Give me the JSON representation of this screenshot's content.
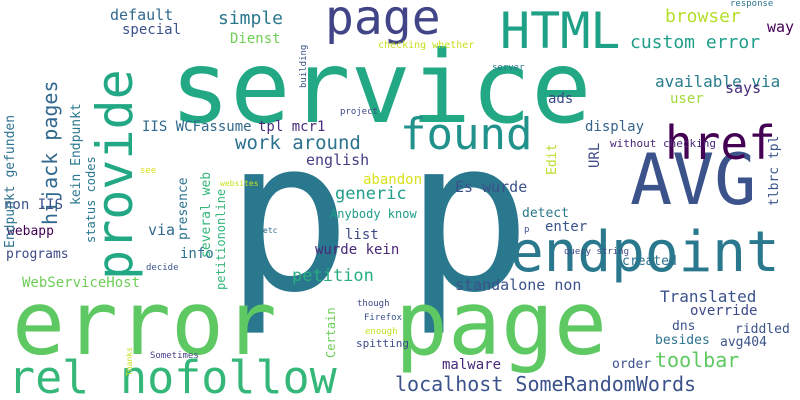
{
  "words": [
    {
      "text": "p",
      "color": "#2a788e"
    },
    {
      "text": "p",
      "color": "#2a788e"
    },
    {
      "text": "service",
      "color": "#22a884"
    },
    {
      "text": "error",
      "color": "#5ec962"
    },
    {
      "text": "page",
      "color": "#5ec962"
    },
    {
      "text": "AVG",
      "color": "#3b528b"
    },
    {
      "text": "endpoint",
      "color": "#2a788e"
    },
    {
      "text": "provide",
      "color": "#22a884"
    },
    {
      "text": "rel",
      "color": "#35b779"
    },
    {
      "text": "nofollow",
      "color": "#35b779"
    },
    {
      "text": "href",
      "color": "#440154"
    },
    {
      "text": "found",
      "color": "#21918c"
    },
    {
      "text": "page",
      "color": "#414487"
    },
    {
      "text": "HTML",
      "color": "#1fa187"
    },
    {
      "text": "localhost SomeRandomWords",
      "color": "#3b528b"
    },
    {
      "text": "hijack pages",
      "color": "#31688e"
    },
    {
      "text": "custom error",
      "color": "#1f9e89"
    },
    {
      "text": "browser",
      "color": "#b5de2b"
    },
    {
      "text": "way",
      "color": "#440154"
    },
    {
      "text": "simple",
      "color": "#2a788e"
    },
    {
      "text": "default",
      "color": "#31688e"
    },
    {
      "text": "special",
      "color": "#3b528b"
    },
    {
      "text": "Dienst",
      "color": "#6ece58"
    },
    {
      "text": "available via",
      "color": "#287c8e"
    },
    {
      "text": "says",
      "color": "#472d7b"
    },
    {
      "text": "user",
      "color": "#a2da37"
    },
    {
      "text": "ads",
      "color": "#3e4989"
    },
    {
      "text": "display",
      "color": "#33638d"
    },
    {
      "text": "Edit",
      "color": "#b8de29"
    },
    {
      "text": "URL",
      "color": "#3e4989"
    },
    {
      "text": "work around",
      "color": "#2c728e"
    },
    {
      "text": "IIS WCFassume",
      "color": "#31688e"
    },
    {
      "text": "tpl mcr1",
      "color": "#472d7b"
    },
    {
      "text": "english",
      "color": "#433e85"
    },
    {
      "text": "generic",
      "color": "#1f9e89"
    },
    {
      "text": "abandon",
      "color": "#d8e219"
    },
    {
      "text": "Es wurde",
      "color": "#3b528b"
    },
    {
      "text": "detect",
      "color": "#2a788e"
    },
    {
      "text": "enter",
      "color": "#39558c"
    },
    {
      "text": "list",
      "color": "#3e4989"
    },
    {
      "text": "wurde kein",
      "color": "#482878"
    },
    {
      "text": "created",
      "color": "#2c728e"
    },
    {
      "text": "petition",
      "color": "#29af7f"
    },
    {
      "text": "standalone non",
      "color": "#3b528b"
    },
    {
      "text": "Translated",
      "color": "#3b528b"
    },
    {
      "text": "override",
      "color": "#3e4989"
    },
    {
      "text": "dns",
      "color": "#3b528b"
    },
    {
      "text": "riddled",
      "color": "#3b528b"
    },
    {
      "text": "besides",
      "color": "#2c728e"
    },
    {
      "text": "avg404",
      "color": "#3b528b"
    },
    {
      "text": "toolbar",
      "color": "#5ec962"
    },
    {
      "text": "order",
      "color": "#3b528b"
    },
    {
      "text": "malware",
      "color": "#482878"
    },
    {
      "text": "spitting",
      "color": "#3e4989"
    },
    {
      "text": "WebServiceHost",
      "color": "#6ece58"
    },
    {
      "text": "programs",
      "color": "#3e4989"
    },
    {
      "text": "webapp",
      "color": "#440154"
    },
    {
      "text": "non IIS",
      "color": "#3b528b"
    },
    {
      "text": "via",
      "color": "#31688e"
    },
    {
      "text": "info",
      "color": "#2c728e"
    },
    {
      "text": "presence",
      "color": "#2c728e"
    },
    {
      "text": "several web",
      "color": "#35b779"
    },
    {
      "text": "petitiononline",
      "color": "#35b779"
    },
    {
      "text": "Endpunkt gefunden",
      "color": "#2c728e"
    },
    {
      "text": "kein Endpunkt",
      "color": "#2a788e"
    },
    {
      "text": "status codes",
      "color": "#2a788e"
    },
    {
      "text": "Anybody know",
      "color": "#1f9e89"
    },
    {
      "text": "without checking",
      "color": "#482878"
    },
    {
      "text": "tlbrc tpl",
      "color": "#3b528b"
    },
    {
      "text": "Certain",
      "color": "#6ece58"
    },
    {
      "text": "checking whether",
      "color": "#c8e020"
    },
    {
      "text": "project",
      "color": "#3e4989"
    },
    {
      "text": "server",
      "color": "#2a788e"
    },
    {
      "text": "building",
      "color": "#3b528b"
    },
    {
      "text": "response",
      "color": "#2c728e"
    },
    {
      "text": "query string",
      "color": "#3e4989"
    },
    {
      "text": "Firefox",
      "color": "#3b528b"
    },
    {
      "text": "though",
      "color": "#3e4989"
    },
    {
      "text": "enough",
      "color": "#c2df23"
    },
    {
      "text": "Sometimes",
      "color": "#433e85"
    },
    {
      "text": "decide",
      "color": "#3b528b"
    },
    {
      "text": "websites",
      "color": "#c8e020"
    },
    {
      "text": "etc",
      "color": "#31688e"
    },
    {
      "text": "see",
      "color": "#d8e219"
    },
    {
      "text": "Thanks",
      "color": "#c8e020"
    },
    {
      "text": "p",
      "color": "#3b528b"
    }
  ]
}
